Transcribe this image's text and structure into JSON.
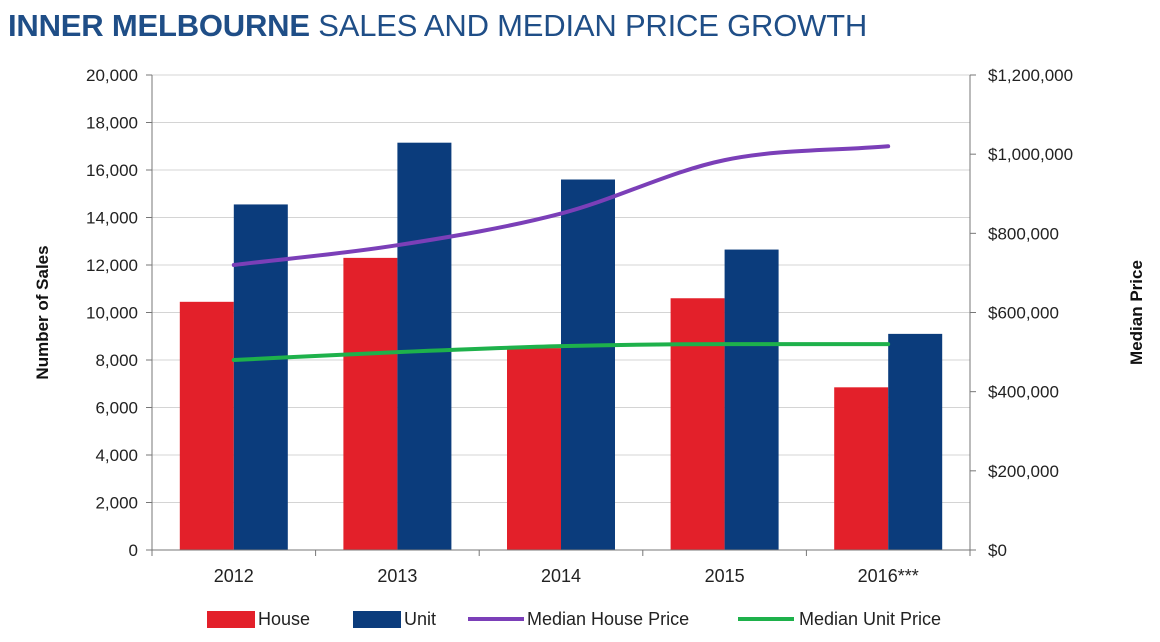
{
  "chart_data": {
    "type": "bar",
    "title_bold": "INNER MELBOURNE",
    "title_rest": "SALES AND MEDIAN PRICE GROWTH",
    "categories": [
      "2012",
      "2013",
      "2014",
      "2015",
      "2016***"
    ],
    "ylabel_left": "Number of Sales",
    "ylabel_right": "Median Price",
    "ylim_left": [
      0,
      20000
    ],
    "ylim_right": [
      0,
      1200000
    ],
    "yticks_left": [
      "0",
      "2,000",
      "4,000",
      "6,000",
      "8,000",
      "10,000",
      "12,000",
      "14,000",
      "16,000",
      "18,000",
      "20,000"
    ],
    "yticks_right": [
      "$0",
      "$200,000",
      "$400,000",
      "$600,000",
      "$800,000",
      "$1,000,000",
      "$1,200,000"
    ],
    "grid": true,
    "legend_position": "bottom",
    "bar_series": [
      {
        "name": "House",
        "color": "#e3202a",
        "values": [
          10450,
          12300,
          8500,
          10600,
          6850
        ]
      },
      {
        "name": "Unit",
        "color": "#0b3c7c",
        "values": [
          14550,
          17150,
          15600,
          12650,
          9100
        ]
      }
    ],
    "line_series": [
      {
        "name": "Median House Price",
        "color": "#7b3fb8",
        "values": [
          720000,
          770000,
          850000,
          985000,
          1020000
        ]
      },
      {
        "name": "Median Unit Price",
        "color": "#1eb14b",
        "values": [
          480000,
          500000,
          515000,
          520000,
          520000
        ]
      }
    ]
  }
}
